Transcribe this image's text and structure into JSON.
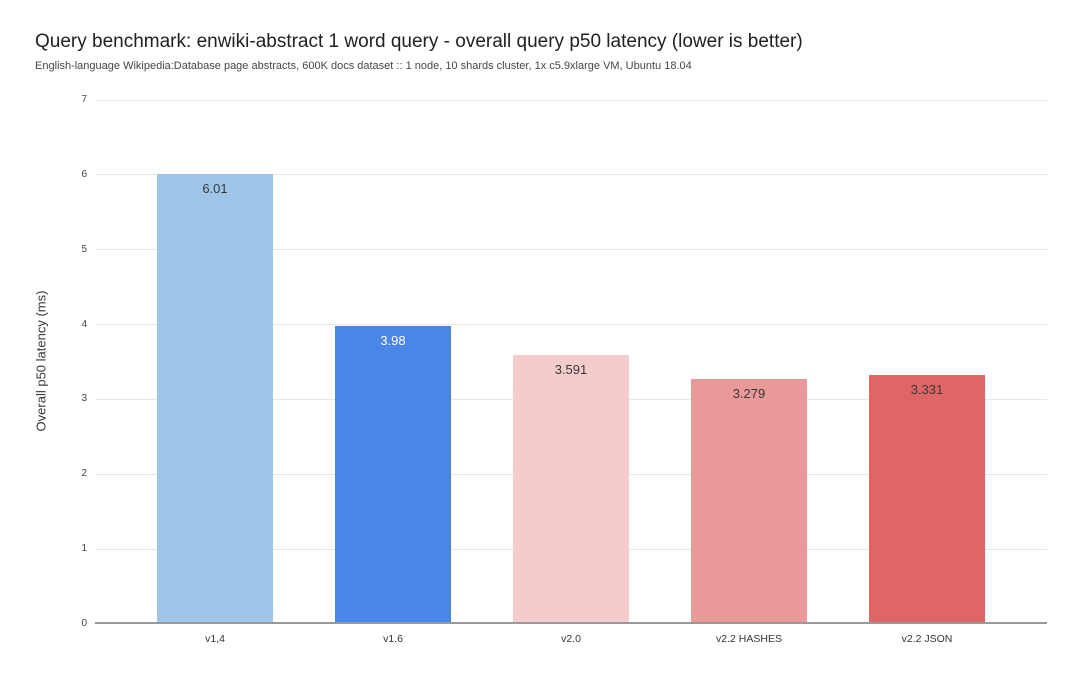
{
  "header": {
    "title": "Query benchmark: enwiki-abstract 1 word query - overall query p50 latency (lower is better)",
    "subtitle": "English-language Wikipedia:Database page abstracts, 600K docs dataset :: 1 node, 10 shards cluster, 1x c5.9xlarge VM, Ubuntu 18.04"
  },
  "chart_data": {
    "type": "bar",
    "title": "Query benchmark: enwiki-abstract 1 word query - overall query p50 latency (lower is better)",
    "subtitle": "English-language Wikipedia:Database page abstracts, 600K docs dataset :: 1 node, 10 shards cluster, 1x c5.9xlarge VM, Ubuntu 18.04",
    "categories": [
      "v1,4",
      "v1.6",
      "v2.0",
      "v2.2 HASHES",
      "v2.2 JSON"
    ],
    "values": [
      6.01,
      3.98,
      3.591,
      3.279,
      3.331
    ],
    "value_labels": [
      "6.01",
      "3.98",
      "3.591",
      "3.279",
      "3.331"
    ],
    "bar_colors": [
      "#9fc5e8",
      "#4a86e8",
      "#f4cccc",
      "#ea9999",
      "#e06666"
    ],
    "value_label_colors": [
      "#383838",
      "#ffffff",
      "#383838",
      "#383838",
      "#383838"
    ],
    "xlabel": "",
    "ylabel": "Overall p50 latency (ms)",
    "ylim": [
      0,
      7
    ],
    "yticks": [
      0,
      1,
      2,
      3,
      4,
      5,
      6,
      7
    ],
    "grid": "horizontal",
    "legend": "none",
    "colors": {
      "gridline": "#e6e6e6",
      "baseline": "#999999",
      "background": "#ffffff"
    }
  }
}
